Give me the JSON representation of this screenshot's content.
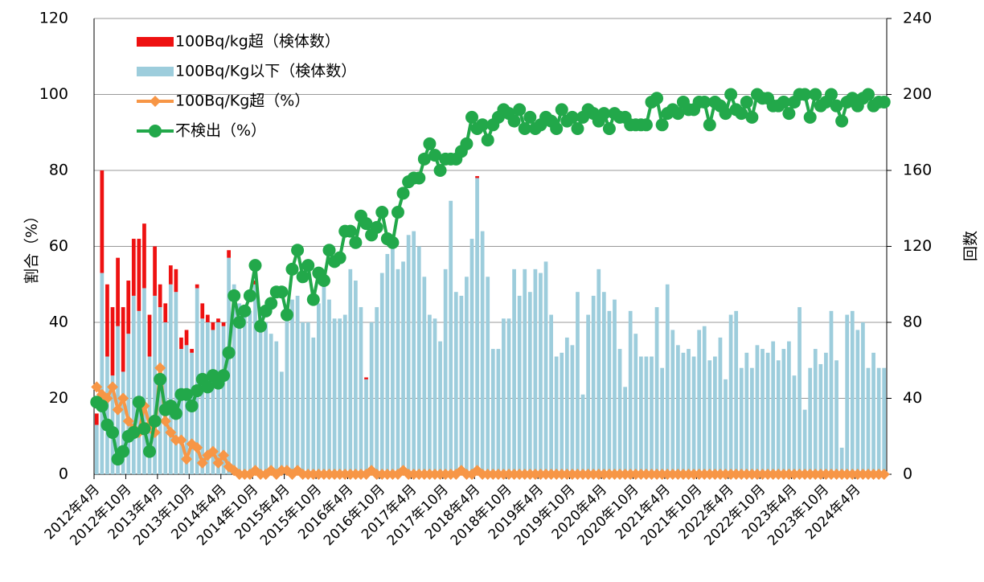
{
  "chart_data": {
    "type": "bar",
    "stacked": true,
    "grid": true,
    "legend": "top-left",
    "y_label": "割合（%）",
    "y2_label": "回数",
    "ylim": [
      0,
      120
    ],
    "yticks": [
      0,
      20,
      40,
      60,
      80,
      100,
      120
    ],
    "y2lim": [
      0,
      240
    ],
    "y2ticks": [
      0,
      40,
      80,
      120,
      160,
      200,
      240
    ],
    "categories": [
      "2012年4月",
      null,
      null,
      null,
      null,
      null,
      "2012年10月",
      null,
      null,
      null,
      null,
      null,
      "2013年4月",
      null,
      null,
      null,
      null,
      null,
      "2013年10月",
      null,
      null,
      null,
      null,
      null,
      "2014年4月",
      null,
      null,
      null,
      null,
      null,
      "2014年10月",
      null,
      null,
      null,
      null,
      null,
      "2015年4月",
      null,
      null,
      null,
      null,
      null,
      "2015年10月",
      null,
      null,
      null,
      null,
      null,
      "2016年4月",
      null,
      null,
      null,
      null,
      null,
      "2016年10月",
      null,
      null,
      null,
      null,
      null,
      "2017年4月",
      null,
      null,
      null,
      null,
      null,
      "2017年10月",
      null,
      null,
      null,
      null,
      null,
      "2018年4月",
      null,
      null,
      null,
      null,
      null,
      "2018年10月",
      null,
      null,
      null,
      null,
      null,
      "2019年4月",
      null,
      null,
      null,
      null,
      null,
      "2019年10月",
      null,
      null,
      null,
      null,
      null,
      "2020年4月",
      null,
      null,
      null,
      null,
      null,
      "2020年10月",
      null,
      null,
      null,
      null,
      null,
      "2021年4月",
      null,
      null,
      null,
      null,
      null,
      "2021年10月",
      null,
      null,
      null,
      null,
      null,
      "2022年4月",
      null,
      null,
      null,
      null,
      null,
      "2022年10月",
      null,
      null,
      null,
      null,
      null,
      "2023年4月",
      null,
      null,
      null,
      null,
      null,
      "2023年10月",
      null,
      null,
      null,
      null,
      null,
      "2024年4月",
      null,
      null,
      null,
      null,
      null
    ],
    "series": [
      {
        "name": "100Bq/kg超（検体数）",
        "type": "bar",
        "axis": "y2",
        "color": "#ee1111",
        "values": [
          6,
          54,
          38,
          36,
          36,
          34,
          28,
          30,
          38,
          34,
          22,
          26,
          12,
          10,
          10,
          12,
          6,
          8,
          2,
          2,
          8,
          4,
          4,
          2,
          2,
          4,
          0,
          0,
          0,
          0,
          2,
          0,
          0,
          0,
          0,
          0,
          0,
          0,
          0,
          0,
          0,
          0,
          0,
          0,
          0,
          0,
          0,
          0,
          0,
          0,
          0,
          1,
          0,
          0,
          0,
          0,
          0,
          0,
          0,
          0,
          0,
          0,
          0,
          0,
          0,
          0,
          0,
          0,
          0,
          0,
          0,
          0,
          1,
          0,
          0,
          0,
          0,
          0,
          0,
          0,
          0,
          0,
          0,
          0,
          0,
          0,
          0,
          0,
          0,
          0,
          0,
          0,
          0,
          0,
          0,
          0,
          0,
          0,
          0,
          0,
          0,
          0,
          0,
          0,
          0,
          0,
          0,
          0,
          0,
          0,
          0,
          0,
          0,
          0,
          0,
          0,
          0,
          0,
          0,
          0,
          0,
          0,
          0,
          0,
          0,
          0,
          0,
          0,
          0,
          0,
          0,
          0,
          0,
          0,
          0,
          0,
          0,
          0,
          0,
          0,
          0,
          0,
          0,
          0,
          0,
          0,
          0,
          0,
          0,
          0
        ]
      },
      {
        "name": "100Bq/Kg以下（検体数）",
        "type": "bar",
        "axis": "y2",
        "color": "#9dcddc",
        "values": [
          26,
          106,
          62,
          52,
          78,
          54,
          74,
          94,
          86,
          98,
          62,
          94,
          88,
          80,
          100,
          96,
          66,
          68,
          64,
          98,
          82,
          80,
          76,
          80,
          78,
          114,
          100,
          90,
          88,
          86,
          100,
          84,
          80,
          74,
          70,
          54,
          84,
          92,
          94,
          80,
          80,
          72,
          90,
          100,
          92,
          82,
          82,
          84,
          108,
          102,
          88,
          50,
          80,
          88,
          106,
          116,
          120,
          108,
          112,
          126,
          128,
          120,
          104,
          84,
          82,
          70,
          108,
          144,
          96,
          94,
          104,
          124,
          156,
          128,
          104,
          66,
          66,
          82,
          82,
          108,
          94,
          108,
          96,
          108,
          106,
          112,
          84,
          62,
          64,
          72,
          68,
          96,
          42,
          84,
          94,
          108,
          96,
          86,
          92,
          66,
          46,
          86,
          74,
          62,
          62,
          62,
          88,
          56,
          100,
          76,
          68,
          64,
          66,
          62,
          76,
          78,
          60,
          62,
          72,
          50,
          84,
          86,
          56,
          64,
          56,
          68,
          66,
          64,
          70,
          60,
          66,
          70,
          52,
          88,
          34,
          56,
          66,
          58,
          64,
          86,
          60,
          14,
          84,
          86,
          76,
          80,
          56,
          64,
          56,
          56
        ]
      },
      {
        "name": "100Bq/Kg超（%）",
        "type": "line",
        "marker": "diamond",
        "color": "#f79646",
        "values": [
          23,
          21,
          20,
          23,
          17,
          20,
          14,
          12,
          11,
          18,
          13,
          11,
          28,
          14,
          11,
          9,
          9,
          4,
          8,
          7,
          3,
          5,
          6,
          3,
          5,
          2,
          1,
          0,
          0,
          0,
          1,
          0,
          0,
          1,
          0,
          1,
          1,
          0,
          1,
          0,
          0,
          0,
          0,
          0,
          0,
          0,
          0,
          0,
          0,
          0,
          0,
          0,
          1,
          0,
          0,
          0,
          0,
          0,
          1,
          0,
          0,
          0,
          0,
          0,
          0,
          0,
          0,
          0,
          0,
          1,
          0,
          0,
          1,
          0,
          0,
          0,
          0,
          0,
          0,
          0,
          0,
          0,
          0,
          0,
          0,
          0,
          0,
          0,
          0,
          0,
          0,
          0,
          0,
          0,
          0,
          0,
          0,
          0,
          0,
          0,
          0,
          0,
          0,
          0,
          0,
          0,
          0,
          0,
          0,
          0,
          0,
          0,
          0,
          0,
          0,
          0,
          0,
          0,
          0,
          0,
          0,
          0,
          0,
          0,
          0,
          0,
          0,
          0,
          0,
          0,
          0,
          0,
          0,
          0,
          0,
          0,
          0,
          0,
          0,
          0,
          0,
          0,
          0,
          0,
          0,
          0,
          0,
          0,
          0,
          0
        ]
      },
      {
        "name": "不検出（%）",
        "type": "line",
        "marker": "circle",
        "color": "#22a84a",
        "values": [
          19,
          18,
          13,
          11,
          4,
          6,
          10,
          11,
          19,
          12,
          6,
          14,
          25,
          17,
          18,
          16,
          21,
          21,
          18,
          22,
          25,
          23,
          26,
          24,
          26,
          32,
          47,
          40,
          43,
          47,
          55,
          39,
          43,
          45,
          48,
          48,
          42,
          54,
          59,
          52,
          55,
          46,
          53,
          51,
          59,
          56,
          57,
          64,
          64,
          61,
          68,
          66,
          63,
          65,
          69,
          62,
          61,
          69,
          74,
          77,
          78,
          78,
          83,
          87,
          84,
          80,
          83,
          83,
          83,
          85,
          87,
          94,
          91,
          92,
          88,
          92,
          94,
          96,
          95,
          93,
          96,
          91,
          94,
          91,
          92,
          94,
          93,
          91,
          96,
          93,
          94,
          91,
          94,
          96,
          95,
          93,
          95,
          91,
          95,
          94,
          94,
          92,
          92,
          92,
          92,
          98,
          99,
          92,
          95,
          96,
          95,
          98,
          96,
          96,
          98,
          98,
          92,
          98,
          97,
          95,
          100,
          96,
          95,
          98,
          94,
          100,
          99,
          99,
          97,
          97,
          98,
          95,
          98,
          100,
          100,
          94,
          100,
          97,
          98,
          100,
          97,
          93,
          98,
          99,
          97,
          99,
          100,
          97,
          98,
          98
        ]
      }
    ]
  }
}
